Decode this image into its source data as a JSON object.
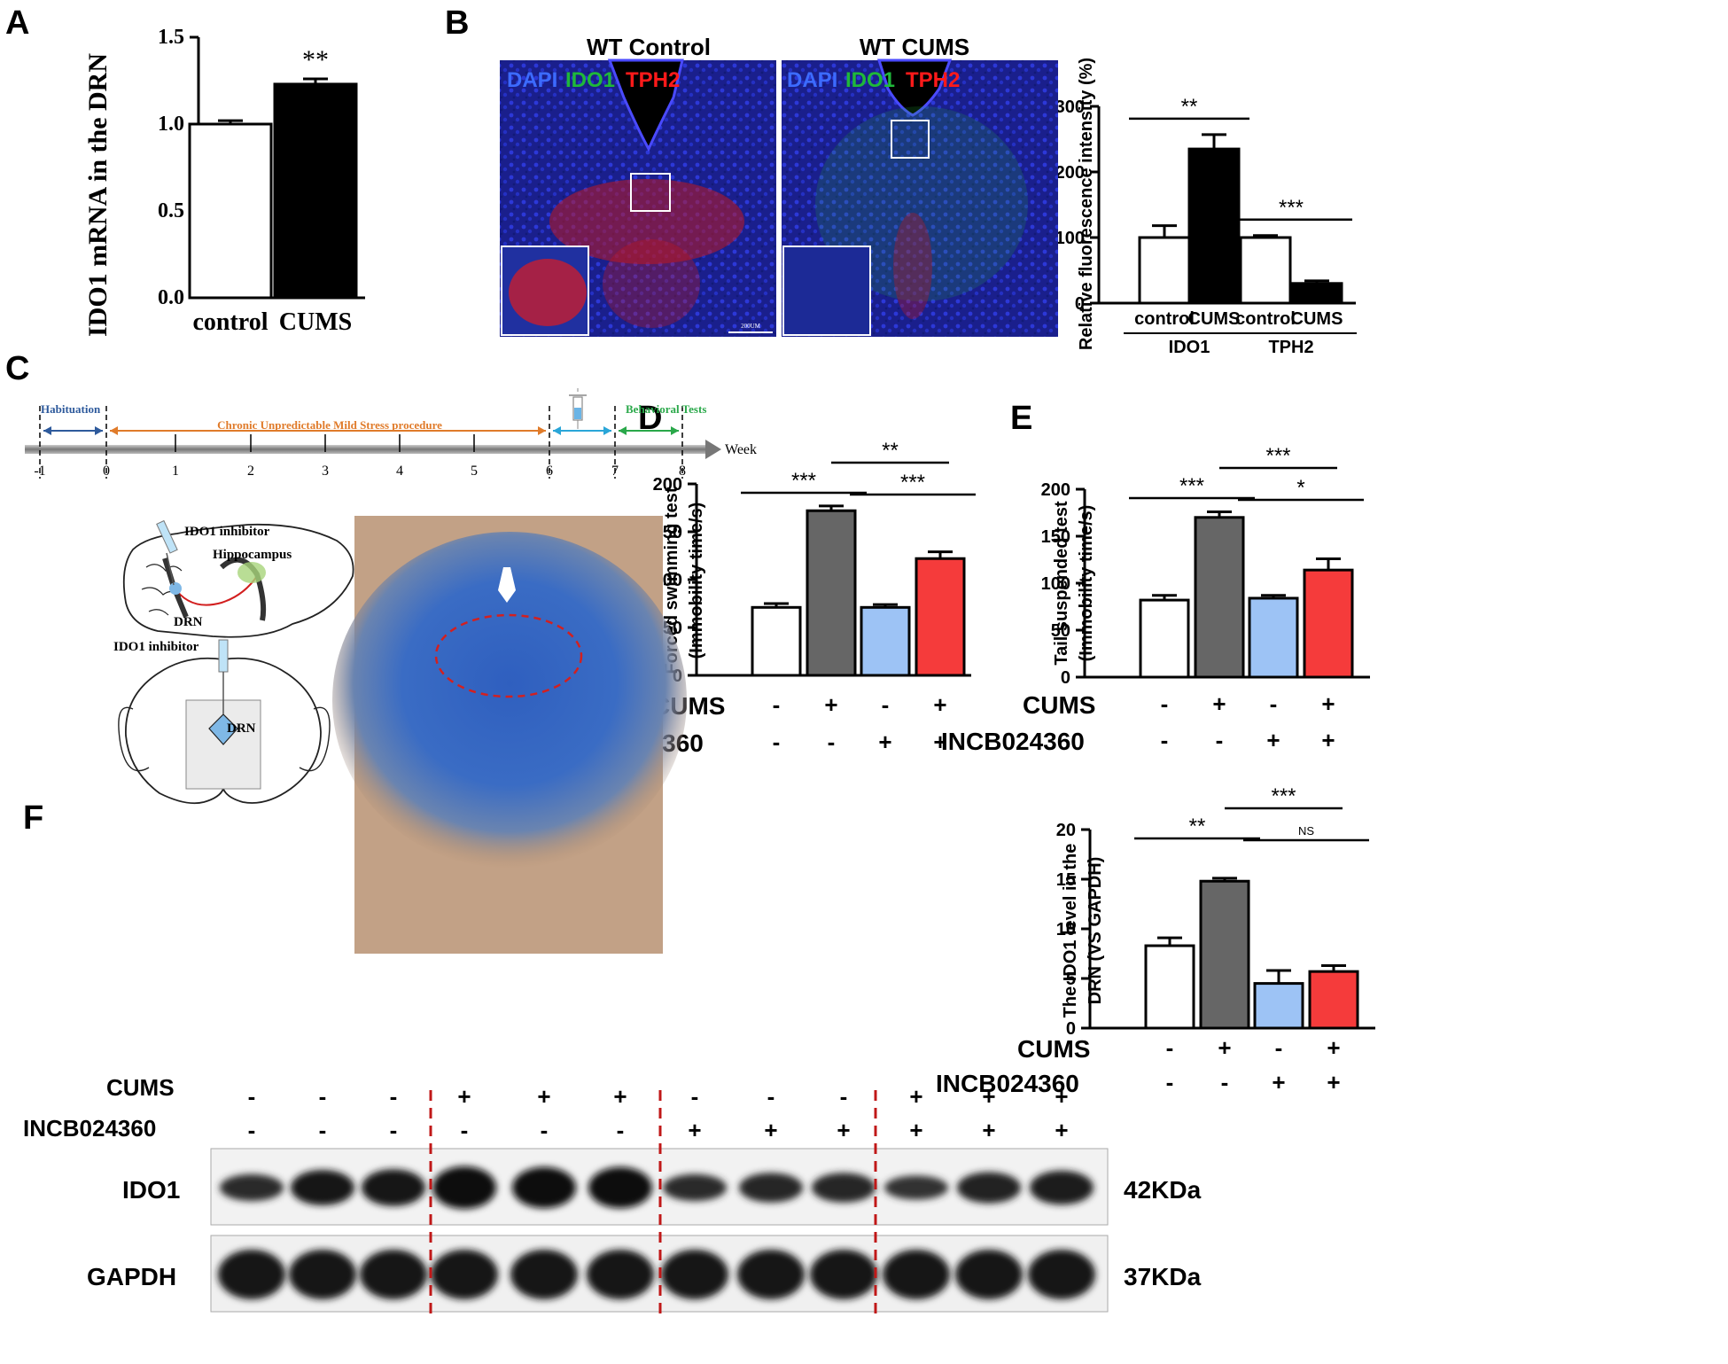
{
  "panel_labels": {
    "a": "A",
    "b": "B",
    "c": "C",
    "d": "D",
    "e": "E",
    "f": "F"
  },
  "micrographs": {
    "left_title": "WT Control",
    "right_title": "WT CUMS",
    "stain_dapi": "DAPI",
    "stain_ido1": "IDO1",
    "stain_tph2": "TPH2",
    "scale_text": "200UM"
  },
  "timeline": {
    "phase_habituation": "Habituation",
    "phase_cums": "Chronic Unpredictable Mild Stress procedure",
    "phase_behavior": "Behavioral Tests",
    "axis_unit": "Week",
    "ticks": [
      "-1",
      "0",
      "1",
      "2",
      "3",
      "4",
      "5",
      "6",
      "7",
      "8"
    ]
  },
  "schematic": {
    "label_inhibitor_sagittal": "IDO1 inhibitor",
    "label_hippocampus": "Hippocampus",
    "label_drn_sagittal": "DRN",
    "label_inhibitor_coronal": "IDO1 inhibitor",
    "label_drn_coronal": "DRN"
  },
  "western": {
    "row_cums_label": "CUMS",
    "row_inhibitor_label": "INCB024360",
    "cums_signs": [
      "-",
      "-",
      "-",
      "+",
      "+",
      "+",
      "-",
      "-",
      "-",
      "+",
      "+",
      "+"
    ],
    "inhibitor_signs": [
      "-",
      "-",
      "-",
      "-",
      "-",
      "-",
      "+",
      "+",
      "+",
      "+",
      "+",
      "+"
    ],
    "ido1_label": "IDO1",
    "gapdh_label": "GAPDH",
    "ido1_size": "42KDa",
    "gapdh_size": "37KDa",
    "ido1_intensity": [
      0.45,
      0.75,
      0.8,
      1.0,
      0.95,
      0.95,
      0.45,
      0.55,
      0.55,
      0.35,
      0.6,
      0.7
    ]
  },
  "chart_data": [
    {
      "id": "A",
      "type": "bar",
      "categories": [
        "control",
        "CUMS"
      ],
      "values": [
        1.0,
        1.23
      ],
      "errors": [
        0.02,
        0.03
      ],
      "fills": [
        "#ffffff",
        "#000000"
      ],
      "ylabel": "IDO1 mRNA in the DRN",
      "ylim": [
        0,
        1.5
      ],
      "yticks": [
        "0.0",
        "0.5",
        "1.0",
        "1.5"
      ],
      "annotations": [
        {
          "text": "**",
          "over": 1
        }
      ]
    },
    {
      "id": "B",
      "type": "bar",
      "categories": [
        "control",
        "CUMS",
        "control",
        "CUMS"
      ],
      "groups": [
        "IDO1",
        "TPH2"
      ],
      "values": [
        100,
        235,
        100,
        30
      ],
      "errors": [
        18,
        22,
        3,
        4
      ],
      "fills": [
        "#ffffff",
        "#000000",
        "#ffffff",
        "#000000"
      ],
      "ylabel": "Relative fluorescence intensity (%)",
      "ylim": [
        0,
        300
      ],
      "yticks": [
        "0",
        "100",
        "200",
        "300"
      ],
      "significance": [
        {
          "from": 0,
          "to": 1,
          "text": "**"
        },
        {
          "from": 2,
          "to": 3,
          "text": "***"
        }
      ]
    },
    {
      "id": "D",
      "type": "bar",
      "values": [
        71,
        172,
        71,
        122
      ],
      "errors": [
        4,
        5,
        3,
        7
      ],
      "fills": [
        "#ffffff",
        "#666666",
        "#9dc3f5",
        "#f53b3b"
      ],
      "ylabel": "Forced swimming test",
      "ylabel2": "(Immobility time/s)",
      "ylim": [
        0,
        200
      ],
      "yticks": [
        "0",
        "50",
        "100",
        "150",
        "200"
      ],
      "cums": [
        "-",
        "+",
        "-",
        "+"
      ],
      "inhibitor": [
        "-",
        "-",
        "+",
        "+"
      ],
      "row_cums": "CUMS",
      "row_inhibitor": "INCB024360",
      "significance": [
        {
          "from": 0,
          "to": 1,
          "text": "***",
          "level": 0
        },
        {
          "from": 2,
          "to": 3,
          "text": "***",
          "level": 0
        },
        {
          "from": 1,
          "to": 3,
          "text": "**",
          "level": 1
        }
      ]
    },
    {
      "id": "E",
      "type": "bar",
      "values": [
        82,
        170,
        84,
        114
      ],
      "errors": [
        5,
        6,
        3,
        12
      ],
      "fills": [
        "#ffffff",
        "#666666",
        "#9dc3f5",
        "#f53b3b"
      ],
      "ylabel": "Tail suspended test",
      "ylabel2": "(Immobility time/s)",
      "ylim": [
        0,
        200
      ],
      "yticks": [
        "0",
        "50",
        "100",
        "150",
        "200"
      ],
      "cums": [
        "-",
        "+",
        "-",
        "+"
      ],
      "inhibitor": [
        "-",
        "-",
        "+",
        "+"
      ],
      "row_cums": "CUMS",
      "row_inhibitor": "INCB024360",
      "significance": [
        {
          "from": 0,
          "to": 1,
          "text": "***",
          "level": 0
        },
        {
          "from": 2,
          "to": 3,
          "text": "*",
          "level": 0
        },
        {
          "from": 1,
          "to": 3,
          "text": "***",
          "level": 1
        }
      ]
    },
    {
      "id": "F",
      "type": "bar",
      "values": [
        8.3,
        14.8,
        4.5,
        5.7
      ],
      "errors": [
        0.8,
        0.3,
        1.3,
        0.6
      ],
      "fills": [
        "#ffffff",
        "#666666",
        "#9dc3f5",
        "#f53b3b"
      ],
      "ylabel": "The IDO1 level in the",
      "ylabel2": "DRN (VS GAPDH)",
      "ylim": [
        0,
        20
      ],
      "yticks": [
        "0",
        "5",
        "10",
        "15",
        "20"
      ],
      "cums": [
        "-",
        "+",
        "-",
        "+"
      ],
      "inhibitor": [
        "-",
        "-",
        "+",
        "+"
      ],
      "row_cums": "CUMS",
      "row_inhibitor": "INCB024360",
      "significance": [
        {
          "from": 0,
          "to": 1,
          "text": "**",
          "level": 0
        },
        {
          "from": 2,
          "to": 3,
          "text": "NS",
          "level": 0
        },
        {
          "from": 1,
          "to": 3,
          "text": "***",
          "level": 1
        }
      ]
    }
  ]
}
